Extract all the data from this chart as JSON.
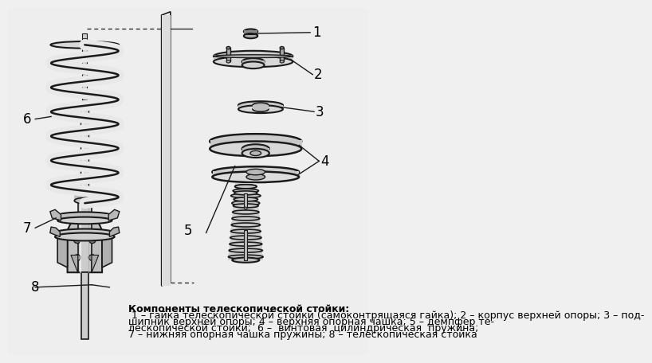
{
  "bg_color": "#f0f0f0",
  "line_color": "#1a1a1a",
  "fill_light": "#e8e8e8",
  "fill_mid": "#d0d0d0",
  "fill_dark": "#b0b0b0",
  "fill_white": "#ffffff",
  "caption_bold": "Компоненты телескопической стойки:",
  "caption_rest": " 1 – гайка телескопической стойки (самоконтрящаяся гайка); 2 – корпус верхней опоры; 3 – под-шипник верхней опоры; 4 – верхняя опорная чашка; 5 – демпфер те-лескопической стойки;  6 –  винтовая  цилиндрическая  пружина;\n7 – нижняя опорная чашка пружины; 8 – телескопическая стойка",
  "label_fs": 12,
  "caption_fs": 9
}
